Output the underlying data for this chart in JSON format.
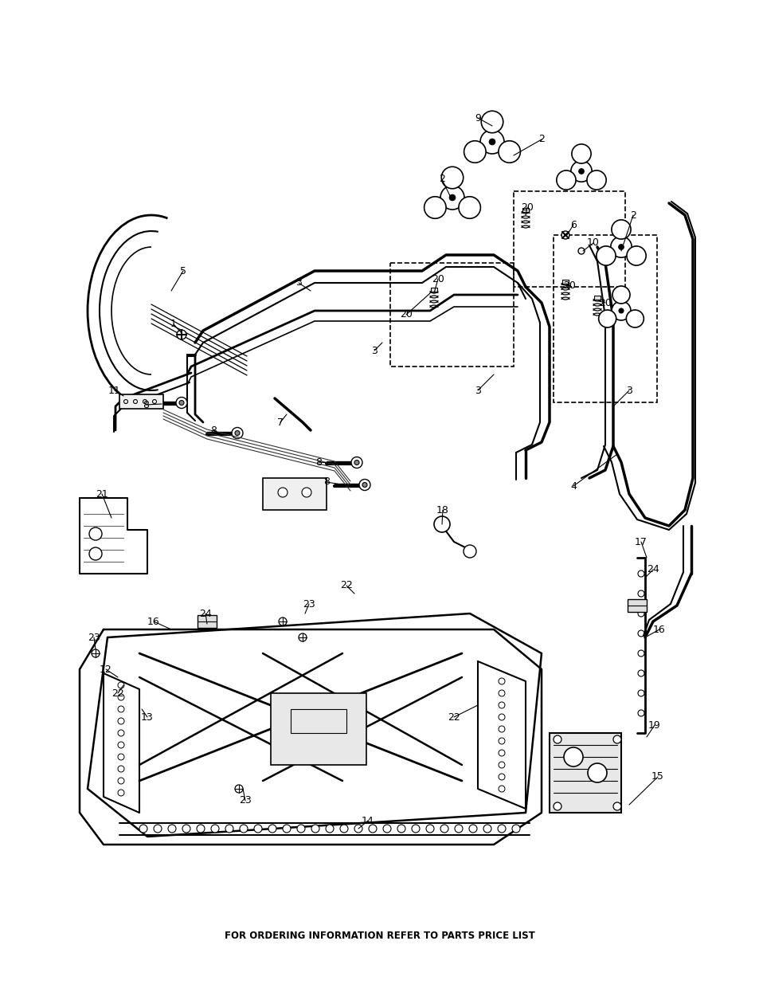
{
  "footer_text": "FOR ORDERING INFORMATION REFER TO PARTS PRICE LIST",
  "background_color": "#ffffff",
  "line_color": "#000000",
  "fig_w": 9.54,
  "fig_h": 12.35,
  "dpi": 100
}
